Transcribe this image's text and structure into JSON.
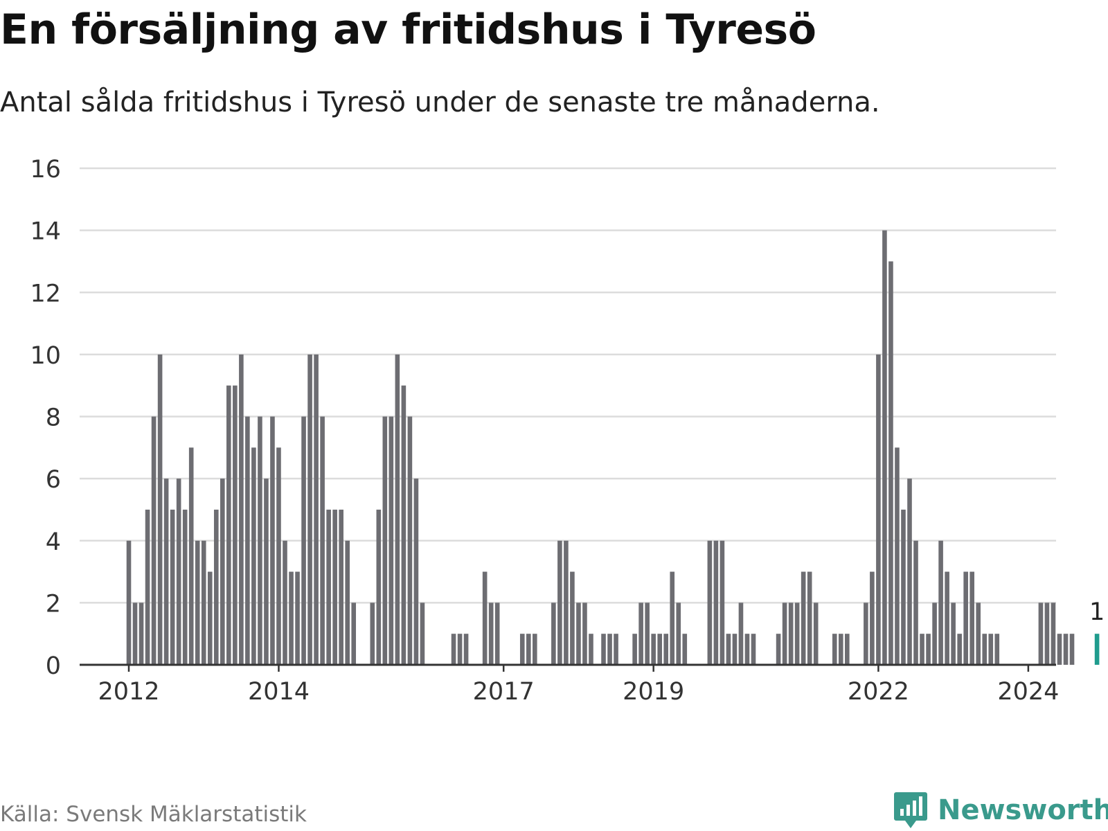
{
  "title": "En försäljning av fritidshus i Tyresö",
  "subtitle": "Antal sålda fritidshus i Tyresö under de senaste tre månaderna.",
  "source": "Källa: Svensk Mäklarstatistik",
  "brand": {
    "name": "Newsworthy",
    "icon": "newsworthy-logo-icon"
  },
  "colors": {
    "bar": "#6d6d72",
    "highlight": "#1f9c8e",
    "grid": "#dcdcdc",
    "axis": "#333333"
  },
  "chart_data": {
    "type": "bar",
    "title": "En försäljning av fritidshus i Tyresö",
    "ylabel": "",
    "xlabel": "",
    "ylim": [
      0,
      16
    ],
    "yticks": [
      0,
      2,
      4,
      6,
      8,
      10,
      12,
      14,
      16
    ],
    "start": "2012-01",
    "xticks": [
      {
        "label": "2012",
        "index": 0
      },
      {
        "label": "2014",
        "index": 24
      },
      {
        "label": "2017",
        "index": 60
      },
      {
        "label": "2019",
        "index": 84
      },
      {
        "label": "2022",
        "index": 120
      },
      {
        "label": "2024",
        "index": 144
      }
    ],
    "values": [
      4,
      2,
      2,
      5,
      8,
      10,
      6,
      5,
      6,
      5,
      7,
      4,
      4,
      3,
      5,
      6,
      9,
      9,
      10,
      8,
      7,
      8,
      6,
      8,
      7,
      4,
      3,
      3,
      8,
      10,
      10,
      8,
      5,
      5,
      5,
      4,
      2,
      0,
      0,
      2,
      5,
      8,
      8,
      10,
      9,
      8,
      6,
      2,
      0,
      0,
      0,
      0,
      1,
      1,
      1,
      0,
      0,
      3,
      2,
      2,
      0,
      0,
      0,
      1,
      1,
      1,
      0,
      0,
      2,
      4,
      4,
      3,
      2,
      2,
      1,
      0,
      1,
      1,
      1,
      0,
      0,
      1,
      2,
      2,
      1,
      1,
      1,
      3,
      2,
      1,
      0,
      0,
      0,
      4,
      4,
      4,
      1,
      1,
      2,
      1,
      1,
      0,
      0,
      0,
      1,
      2,
      2,
      2,
      3,
      3,
      2,
      0,
      0,
      1,
      1,
      1,
      0,
      0,
      2,
      3,
      10,
      14,
      13,
      7,
      5,
      6,
      4,
      1,
      1,
      2,
      4,
      3,
      2,
      1,
      3,
      3,
      2,
      1,
      1,
      1,
      0,
      0,
      0,
      0,
      0,
      0,
      2,
      2,
      2,
      1,
      1,
      1,
      0,
      0,
      0,
      1
    ],
    "highlight_index": 155,
    "highlight_label": "1"
  }
}
